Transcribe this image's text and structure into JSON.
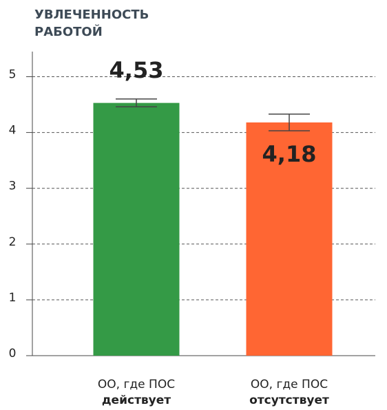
{
  "chart_data": {
    "type": "bar",
    "title": "УВЛЕЧЕННОСТЬ РАБОТОЙ",
    "categories": [
      [
        "ОО, где ПОС",
        "действует"
      ],
      [
        "ОО, где ПОС",
        "отсутствует"
      ]
    ],
    "values": [
      4.53,
      4.18
    ],
    "value_labels": [
      "4,53",
      "4,18"
    ],
    "errors": [
      0.07,
      0.15
    ],
    "colors": [
      "#349a46",
      "#ff6633"
    ],
    "value_label_position": [
      "above",
      "inside"
    ],
    "ylim": [
      0,
      5.45
    ],
    "yticks": [
      0,
      1,
      2,
      3,
      4,
      5
    ],
    "grid": true
  }
}
